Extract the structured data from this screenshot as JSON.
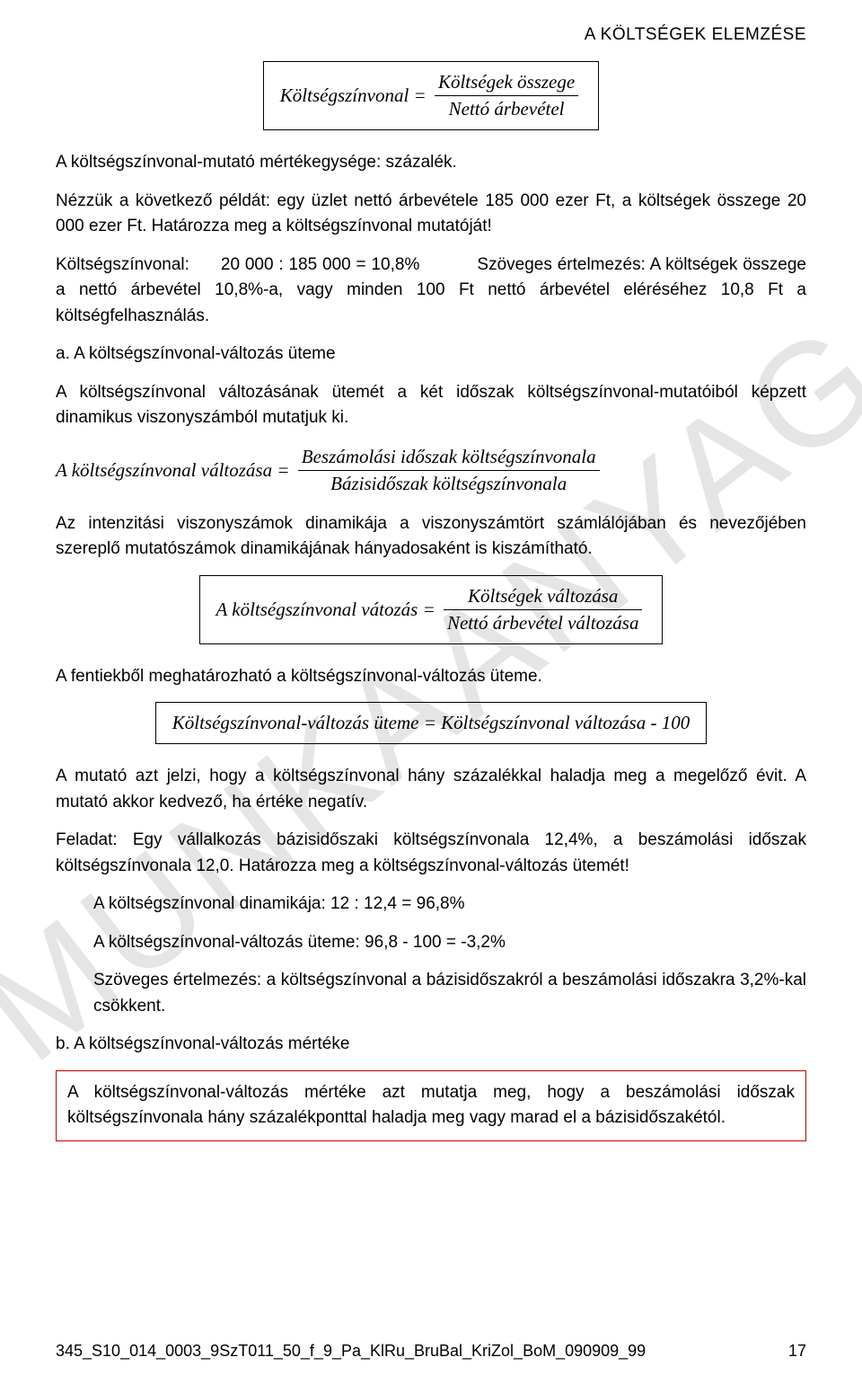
{
  "page": {
    "header_title": "A KÖLTSÉGEK ELEMZÉSE",
    "watermark": "MUNKAANYAG",
    "footer_code": "345_S10_014_0003_9SzT011_50_f_9_Pa_KlRu_BruBal_KriZol_BoM_090909_99",
    "page_number": "17"
  },
  "formula1": {
    "lhs": "Költségszínvonal",
    "eq": "=",
    "num": "Költségek összege",
    "den": "Nettó árbevétel"
  },
  "p1": "A költségszínvonal-mutató mértékegysége: százalék.",
  "p2": "Nézzük a következő példát: egy üzlet nettó árbevétele 185 000 ezer Ft, a költségek összege 20 000 ezer Ft. Határozza meg a költségszínvonal mutatóját!",
  "p3": "Költségszínvonal:      20 000 : 185 000 = 10,8%           Szöveges értelmezés: A költségek összege a nettó árbevétel 10,8%-a, vagy minden 100 Ft nettó árbevétel eléréséhez 10,8 Ft a költségfelhasználás.",
  "p4": "a. A költségszínvonal-változás üteme",
  "p5": "A költségszínvonal változásának ütemét a két időszak költségszínvonal-mutatóiból képzett dinamikus viszonyszámból mutatjuk ki.",
  "formula2": {
    "lhs": "A költségszínvonal változása",
    "eq": "=",
    "num": "Beszámolási időszak költségszínvonala",
    "den": "Bázisidőszak költségszínvonala"
  },
  "p6": "Az intenzitási viszonyszámok dinamikája a viszonyszámtört számlálójában és nevezőjében szereplő mutatószámok dinamikájának hányadosaként is kiszámítható.",
  "formula3": {
    "lhs": "A költségszínvonal vátozás",
    "eq": "=",
    "num": "Költségek változása",
    "den": "Nettó árbevétel változása"
  },
  "p7": "A fentiekből meghatározható a költségszínvonal-változás üteme.",
  "formula4": {
    "text": "Költségszínvonal-változás üteme = Költségszínvonal változása - 100"
  },
  "p8": "A mutató azt jelzi, hogy a költségszínvonal hány százalékkal haladja meg a megelőző évit. A mutató akkor kedvező, ha értéke negatív.",
  "p9": "Feladat: Egy vállalkozás bázisidőszaki költségszínvonala 12,4%, a beszámolási időszak költségszínvonala 12,0. Határozza meg a költségszínvonal-változás ütemét!",
  "p10": "A költségszínvonal dinamikája: 12 : 12,4 = 96,8%",
  "p11": "A költségszínvonal-változás üteme: 96,8 - 100 = -3,2%",
  "p12": "Szöveges értelmezés: a költségszínvonal a bázisidőszakról a beszámolási időszakra 3,2%-kal csökkent.",
  "p13": "b. A költségszínvonal-változás mértéke",
  "redbox": "A költségszínvonal-változás mértéke azt mutatja meg, hogy a beszámolási időszak költségszínvonala hány százalékponttal haladja meg vagy marad el a bázisidőszakétól.",
  "styles": {
    "body_font_size_pt": 14,
    "formula_font_size_pt": 16,
    "watermark_font_size_pt": 120,
    "watermark_color": "#e3e3e3",
    "redbox_border_color": "#c00000",
    "text_color": "#000000",
    "background_color": "#ffffff"
  }
}
